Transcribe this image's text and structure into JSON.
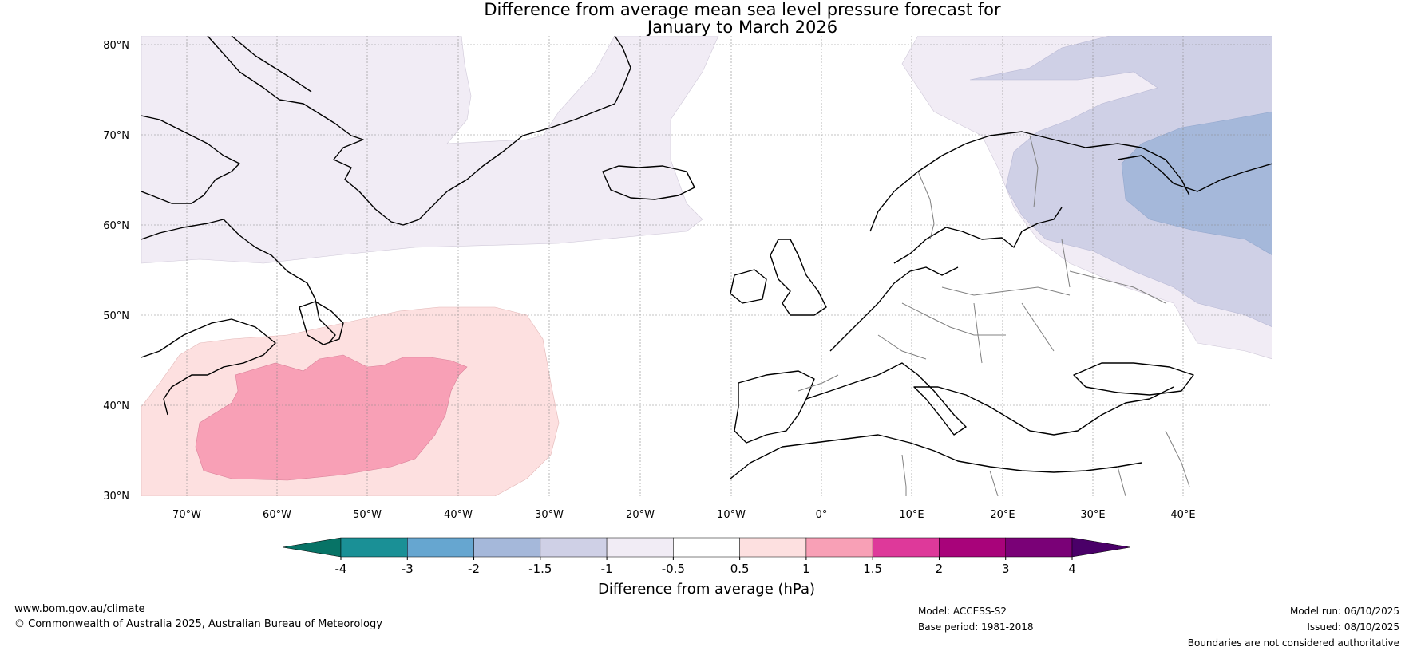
{
  "title": {
    "line1": "Difference from average mean sea level pressure forecast for",
    "line2": "January to March 2026"
  },
  "map": {
    "lat_labels": [
      "80°N",
      "70°N",
      "60°N",
      "50°N",
      "40°N",
      "30°N"
    ],
    "lon_labels": [
      "70°W",
      "60°W",
      "50°W",
      "40°W",
      "30°W",
      "20°W",
      "10°W",
      "0°",
      "10°E",
      "20°E",
      "30°E",
      "40°E"
    ],
    "lat_range": [
      30,
      81
    ],
    "lon_range": [
      -75,
      50
    ]
  },
  "colorbar": {
    "label": "Difference from average (hPa)",
    "tick_labels": [
      "-4",
      "-3",
      "-2",
      "-1.5",
      "-1",
      "-0.5",
      "0.5",
      "1",
      "1.5",
      "2",
      "3",
      "4"
    ],
    "colors": [
      "#1a9096",
      "#66a6d0",
      "#a5b8da",
      "#cfd0e6",
      "#f1ecf5",
      "#ffffff",
      "#fde0e0",
      "#f8a0b6",
      "#de399a",
      "#a8037a",
      "#7a0177"
    ],
    "extend_low": "#077366",
    "extend_high": "#4a0068"
  },
  "footer": {
    "left_line1": "www.bom.gov.au/climate",
    "left_line2": "© Commonwealth of Australia 2025, Australian Bureau of Meteorology",
    "model": "Model: ACCESS-S2",
    "base_period": "Base period: 1981-2018",
    "model_run": "Model run: 06/10/2025",
    "issued": "Issued: 08/10/2025",
    "disclaimer": "Boundaries are not considered authoritative"
  }
}
